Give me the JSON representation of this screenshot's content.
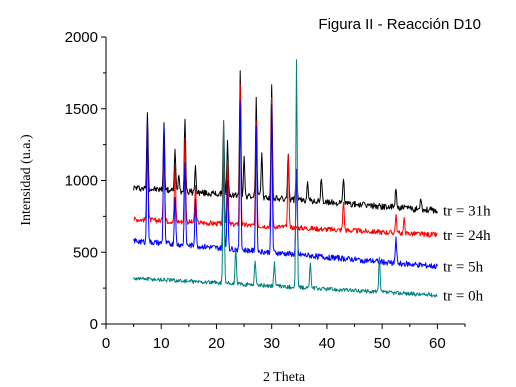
{
  "chart_data": {
    "type": "line",
    "title": "Figura II - Reacción D10",
    "xlabel": "2 Theta",
    "ylabel": "Intensidad (u.a.)",
    "xlim": [
      0,
      65
    ],
    "ylim": [
      0,
      2000
    ],
    "x_ticks": [
      "0",
      "10",
      "20",
      "30",
      "40",
      "50",
      "60"
    ],
    "y_ticks": [
      "0",
      "500",
      "1000",
      "1500",
      "2000"
    ],
    "grid": false,
    "series": [
      {
        "name": "tr = 31h",
        "color": "#000000",
        "baseline_start": 950,
        "baseline_end": 790,
        "noise": 22,
        "peaks": [
          [
            7.5,
            1490
          ],
          [
            10.5,
            1400
          ],
          [
            12.5,
            1210
          ],
          [
            13.2,
            1050
          ],
          [
            14.3,
            1440
          ],
          [
            16.2,
            1090
          ],
          [
            21.3,
            1400
          ],
          [
            22.0,
            1260
          ],
          [
            24.3,
            1780
          ],
          [
            25.0,
            1160
          ],
          [
            27.2,
            1570
          ],
          [
            28.2,
            1200
          ],
          [
            30.0,
            1680
          ],
          [
            33.0,
            1190
          ],
          [
            34.5,
            1060
          ],
          [
            36.5,
            1010
          ],
          [
            39.0,
            1020
          ],
          [
            43.0,
            1020
          ],
          [
            52.5,
            950
          ],
          [
            57.0,
            890
          ]
        ]
      },
      {
        "name": "tr = 24h",
        "color": "#ff0000",
        "baseline_start": 730,
        "baseline_end": 620,
        "noise": 18,
        "peaks": [
          [
            7.5,
            1370
          ],
          [
            10.5,
            1300
          ],
          [
            12.5,
            1080
          ],
          [
            14.3,
            1310
          ],
          [
            16.2,
            960
          ],
          [
            21.3,
            1250
          ],
          [
            22.0,
            1130
          ],
          [
            24.3,
            1660
          ],
          [
            27.2,
            1430
          ],
          [
            30.0,
            1580
          ],
          [
            33.0,
            1160
          ],
          [
            43.0,
            860
          ],
          [
            52.5,
            760
          ],
          [
            54.0,
            730
          ]
        ]
      },
      {
        "name": "tr = 5h",
        "color": "#0000ff",
        "baseline_start": 580,
        "baseline_end": 400,
        "noise": 20,
        "peaks": [
          [
            7.5,
            1390
          ],
          [
            10.5,
            1380
          ],
          [
            12.5,
            900
          ],
          [
            14.3,
            1140
          ],
          [
            16.2,
            870
          ],
          [
            21.3,
            1130
          ],
          [
            22.0,
            980
          ],
          [
            24.3,
            1560
          ],
          [
            27.2,
            1380
          ],
          [
            30.0,
            1520
          ],
          [
            34.5,
            1060
          ],
          [
            52.5,
            590
          ]
        ]
      },
      {
        "name": "tr = 0h",
        "color": "#008080",
        "baseline_start": 320,
        "baseline_end": 200,
        "noise": 14,
        "peaks": [
          [
            21.3,
            1410
          ],
          [
            23.5,
            520
          ],
          [
            27.0,
            450
          ],
          [
            30.5,
            430
          ],
          [
            34.5,
            1840
          ],
          [
            37.0,
            420
          ],
          [
            49.5,
            460
          ]
        ]
      }
    ]
  }
}
